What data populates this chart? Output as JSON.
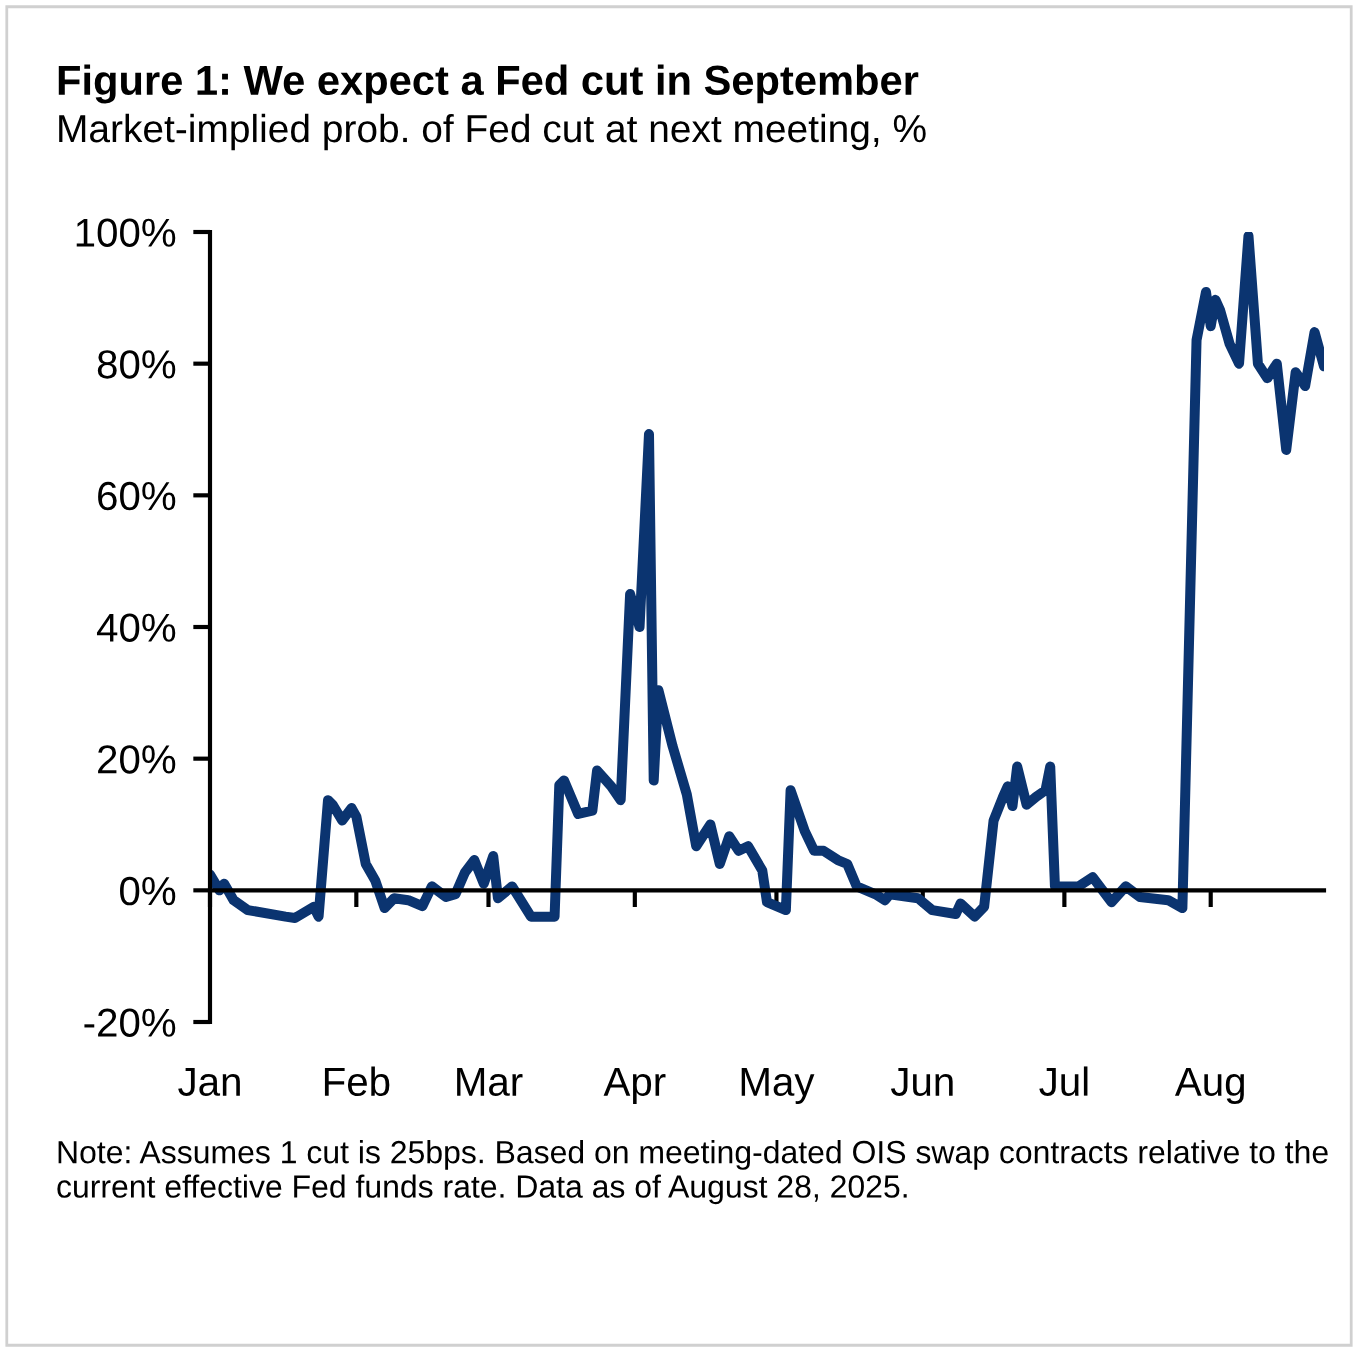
{
  "chart_data": {
    "type": "line",
    "title": "Figure 1: We expect a Fed cut in September",
    "subtitle": "Market-implied prob. of Fed cut at next meeting, %",
    "annotations": [
      "Note: Assumes 1 cut is 25bps. Based on meeting-dated OIS swap contracts relative to the current effective Fed funds rate. Data as of August 28, 2025."
    ],
    "x": [
      "2025-01-01",
      "2025-01-03",
      "2025-01-04",
      "2025-01-06",
      "2025-01-09",
      "2025-01-17",
      "2025-01-19",
      "2025-01-23",
      "2025-01-24",
      "2025-01-26",
      "2025-01-27",
      "2025-01-29",
      "2025-01-31",
      "2025-02-01",
      "2025-02-03",
      "2025-02-05",
      "2025-02-07",
      "2025-02-09",
      "2025-02-12",
      "2025-02-15",
      "2025-02-17",
      "2025-02-20",
      "2025-02-22",
      "2025-02-24",
      "2025-02-26",
      "2025-02-28",
      "2025-03-02",
      "2025-03-03",
      "2025-03-06",
      "2025-03-10",
      "2025-03-15",
      "2025-03-16",
      "2025-03-17",
      "2025-03-20",
      "2025-03-23",
      "2025-03-24",
      "2025-03-27",
      "2025-03-29",
      "2025-03-31",
      "2025-04-02",
      "2025-04-04",
      "2025-04-05",
      "2025-04-06",
      "2025-04-09",
      "2025-04-12",
      "2025-04-14",
      "2025-04-17",
      "2025-04-19",
      "2025-04-21",
      "2025-04-23",
      "2025-04-25",
      "2025-04-28",
      "2025-04-29",
      "2025-05-03",
      "2025-05-04",
      "2025-05-07",
      "2025-05-09",
      "2025-05-11",
      "2025-05-14",
      "2025-05-16",
      "2025-05-18",
      "2025-05-22",
      "2025-05-24",
      "2025-05-25",
      "2025-05-31",
      "2025-06-03",
      "2025-06-08",
      "2025-06-09",
      "2025-06-12",
      "2025-06-14",
      "2025-06-16",
      "2025-06-18",
      "2025-06-19",
      "2025-06-20",
      "2025-06-21",
      "2025-06-23",
      "2025-06-25",
      "2025-06-27",
      "2025-06-28",
      "2025-06-29",
      "2025-07-04",
      "2025-07-07",
      "2025-07-11",
      "2025-07-14",
      "2025-07-17",
      "2025-07-23",
      "2025-07-26",
      "2025-07-29",
      "2025-07-31",
      "2025-08-01",
      "2025-08-02",
      "2025-08-03",
      "2025-08-05",
      "2025-08-07",
      "2025-08-09",
      "2025-08-11",
      "2025-08-13",
      "2025-08-15",
      "2025-08-17",
      "2025-08-19",
      "2025-08-21",
      "2025-08-23",
      "2025-08-25"
    ],
    "series": [
      {
        "color": "#0b3470",
        "values": [
          2.4,
          0,
          1,
          -1.5,
          -3,
          -4,
          -4.2,
          -2.5,
          -4,
          13.7,
          13,
          10.6,
          12.5,
          11.2,
          4,
          1.5,
          -2.7,
          -1.2,
          -1.5,
          -2.4,
          0.6,
          -1,
          -0.6,
          2.7,
          4.6,
          1,
          5.2,
          -1.2,
          0.6,
          -4,
          -4,
          16,
          16.7,
          11.6,
          12.1,
          18.2,
          15.8,
          13.7,
          45,
          40,
          69.3,
          16.7,
          30.4,
          21.9,
          14.6,
          6.7,
          10,
          4,
          8.2,
          6,
          6.7,
          3,
          -1.8,
          -3,
          15.2,
          9,
          6,
          6,
          4.6,
          4,
          0.6,
          -0.6,
          -1.5,
          -0.6,
          -1.2,
          -3,
          -3.6,
          -2,
          -4,
          -2.5,
          10.6,
          14.2,
          15.8,
          12.8,
          18.8,
          13,
          14.2,
          15.2,
          18.8,
          0.6,
          0.6,
          2,
          -1.8,
          0.6,
          -1,
          -1.5,
          -2.7,
          83.6,
          90.9,
          85.7,
          89.7,
          88.1,
          83,
          80,
          99.4,
          80,
          77.8,
          80,
          66.9,
          78.7,
          76.6,
          84.8,
          79.6
        ]
      }
    ],
    "xlim": [
      "2025-01-01",
      "2025-08-25"
    ],
    "xticks": [
      {
        "value": "2025-01-01",
        "label": "Jan"
      },
      {
        "value": "2025-02-01",
        "label": "Feb"
      },
      {
        "value": "2025-03-01",
        "label": "Mar"
      },
      {
        "value": "2025-04-01",
        "label": "Apr"
      },
      {
        "value": "2025-05-01",
        "label": "May"
      },
      {
        "value": "2025-06-01",
        "label": "Jun"
      },
      {
        "value": "2025-07-01",
        "label": "Jul"
      },
      {
        "value": "2025-08-01",
        "label": "Aug"
      }
    ],
    "ylim": [
      -20,
      100
    ],
    "yticks": [
      {
        "value": -20,
        "label": "-20%"
      },
      {
        "value": 0,
        "label": "0%"
      },
      {
        "value": 20,
        "label": "20%"
      },
      {
        "value": 40,
        "label": "40%"
      },
      {
        "value": 60,
        "label": "60%"
      },
      {
        "value": 80,
        "label": "80%"
      },
      {
        "value": 100,
        "label": "100%"
      }
    ],
    "line_style": "solid",
    "marker": "none"
  }
}
